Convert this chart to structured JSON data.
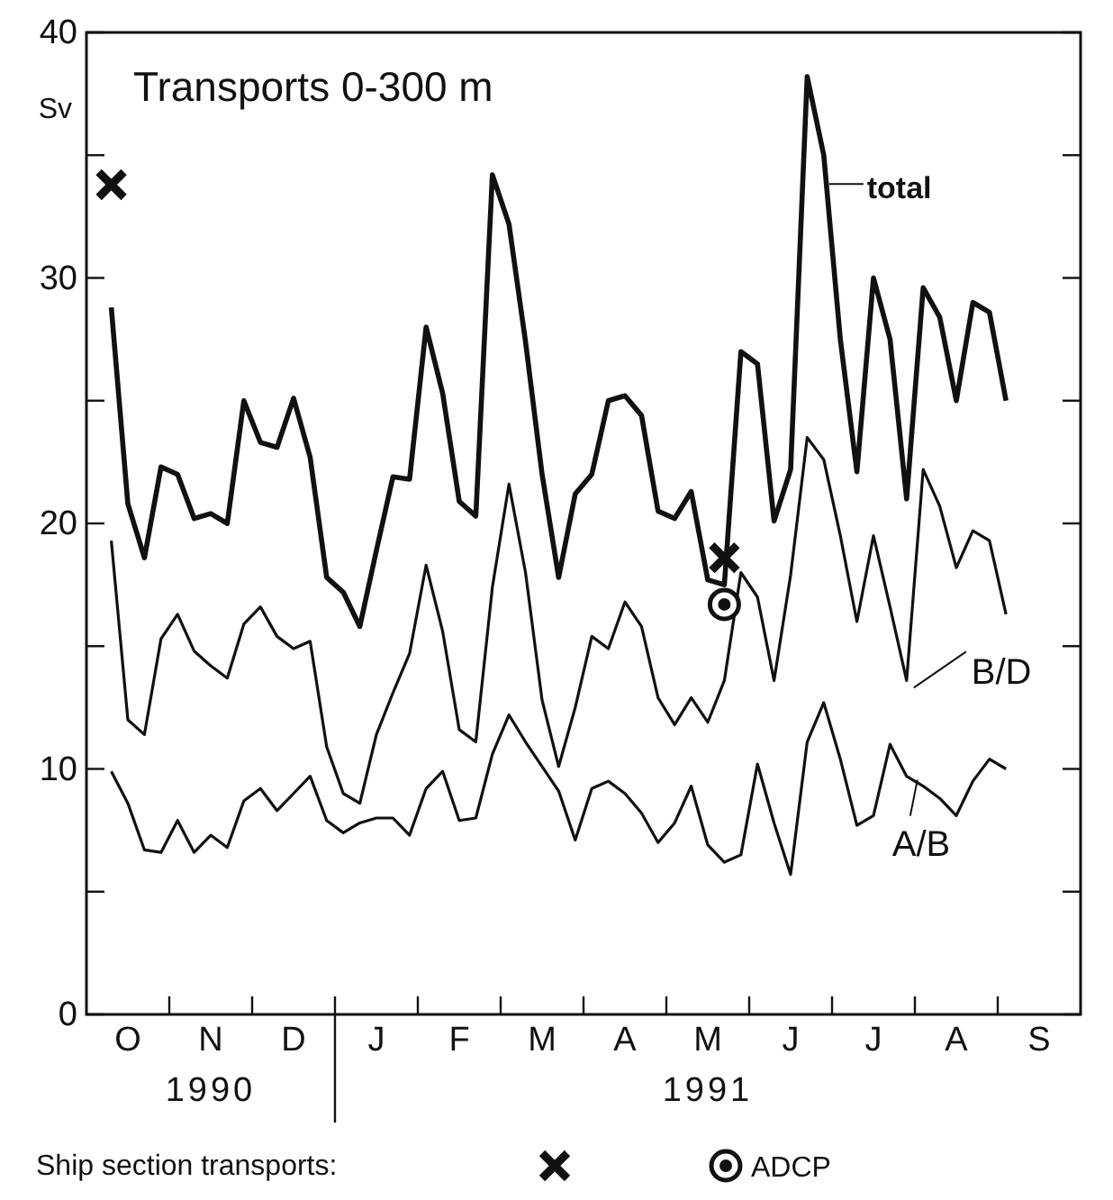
{
  "chart_data": {
    "type": "line",
    "title": "Transports 0-300 m",
    "ylabel": "Sv",
    "legend_title": "Ship section transports:",
    "legend": "bottom",
    "annotations": [
      "1990",
      "1991"
    ],
    "categories": [
      null,
      null,
      "O",
      null,
      null,
      null,
      null,
      "N",
      null,
      null,
      null,
      null,
      "D",
      null,
      null,
      null,
      null,
      "J",
      null,
      null,
      null,
      null,
      "F",
      null,
      null,
      null,
      null,
      "M",
      null,
      null,
      null,
      null,
      "A",
      null,
      null,
      null,
      null,
      "M",
      null,
      null,
      null,
      null,
      "J",
      null,
      null,
      null,
      null,
      "J",
      null,
      null,
      null,
      null,
      "A",
      null,
      null,
      null,
      null,
      "S",
      null,
      null
    ],
    "ylim": [
      0,
      40
    ],
    "yticks": [
      0,
      {
        "value": 5,
        "label": null
      },
      10,
      {
        "value": 15,
        "label": null
      },
      20,
      {
        "value": 25,
        "label": null
      },
      30,
      {
        "value": 35,
        "label": null
      },
      40
    ],
    "series": [
      {
        "name": "total",
        "color": "#111111",
        "values": [
          null,
          28.8,
          20.8,
          18.6,
          22.3,
          22.0,
          20.2,
          20.4,
          20.0,
          25.0,
          23.3,
          23.1,
          25.1,
          22.7,
          17.8,
          17.2,
          15.8,
          18.9,
          21.9,
          21.8,
          28.0,
          25.3,
          20.9,
          20.3,
          34.2,
          32.2,
          27.4,
          22.0,
          17.8,
          21.2,
          22.0,
          25.0,
          25.2,
          24.4,
          20.5,
          20.2,
          21.3,
          17.7,
          17.5,
          27.0,
          26.5,
          20.1,
          22.2,
          38.2,
          35.0,
          27.5,
          22.1,
          30.0,
          27.5,
          21.0,
          29.6,
          28.4,
          25.0,
          29.0,
          28.6,
          25.0,
          null,
          null,
          null,
          null
        ]
      },
      {
        "name": "B/D",
        "color": "#111111",
        "values": [
          null,
          19.3,
          12.0,
          11.4,
          15.3,
          16.3,
          14.8,
          14.2,
          13.7,
          15.9,
          16.6,
          15.4,
          14.9,
          15.2,
          10.9,
          9.0,
          8.6,
          11.4,
          13.1,
          14.7,
          18.3,
          15.6,
          11.6,
          11.1,
          17.4,
          21.6,
          18.0,
          12.8,
          10.1,
          12.5,
          15.4,
          14.9,
          16.8,
          15.8,
          12.9,
          11.8,
          12.9,
          11.9,
          13.6,
          18.0,
          17.0,
          13.6,
          17.9,
          23.5,
          22.6,
          19.5,
          16.0,
          19.5,
          16.6,
          13.6,
          22.2,
          20.7,
          18.2,
          19.7,
          19.3,
          16.3,
          null,
          null,
          null,
          null
        ]
      },
      {
        "name": "A/B",
        "color": "#111111",
        "values": [
          null,
          9.9,
          8.6,
          6.7,
          6.6,
          7.9,
          6.6,
          7.3,
          6.8,
          8.7,
          9.2,
          8.3,
          9.0,
          9.7,
          7.9,
          7.4,
          7.8,
          8.0,
          8.0,
          7.3,
          9.2,
          9.9,
          7.9,
          8.0,
          10.6,
          12.2,
          11.1,
          10.1,
          9.1,
          7.1,
          9.2,
          9.5,
          9.0,
          8.2,
          7.0,
          7.8,
          9.3,
          6.9,
          6.2,
          6.5,
          10.2,
          7.8,
          5.7,
          11.1,
          12.7,
          10.4,
          7.7,
          8.1,
          11.0,
          9.7,
          9.3,
          8.8,
          8.1,
          9.5,
          10.4,
          10.0,
          null,
          null,
          null,
          null
        ]
      },
      {
        "type": "scatter",
        "marker": "cross",
        "color": "#111111",
        "values": [
          null,
          33.8,
          null,
          null,
          null,
          null,
          null,
          null,
          null,
          null,
          null,
          null,
          null,
          null,
          null,
          null,
          null,
          null,
          null,
          null,
          null,
          null,
          null,
          null,
          null,
          null,
          null,
          null,
          null,
          null,
          null,
          null,
          null,
          null,
          null,
          null,
          null,
          null,
          18.6,
          null,
          null,
          null,
          null,
          null,
          null,
          null,
          null,
          null,
          null,
          null,
          null,
          null,
          null,
          null,
          null,
          null,
          null,
          null,
          null,
          null
        ]
      },
      {
        "type": "scatter",
        "marker": "circle",
        "name": "ADCP",
        "color": "#111111",
        "values": [
          null,
          null,
          null,
          null,
          null,
          null,
          null,
          null,
          null,
          null,
          null,
          null,
          null,
          null,
          null,
          null,
          null,
          null,
          null,
          null,
          null,
          null,
          null,
          null,
          null,
          null,
          null,
          null,
          null,
          null,
          null,
          null,
          null,
          null,
          null,
          null,
          null,
          null,
          16.7,
          null,
          null,
          null,
          null,
          null,
          null,
          null,
          null,
          null,
          null,
          null,
          null,
          null,
          null,
          null,
          null,
          null,
          null,
          null,
          null,
          null
        ]
      }
    ]
  }
}
